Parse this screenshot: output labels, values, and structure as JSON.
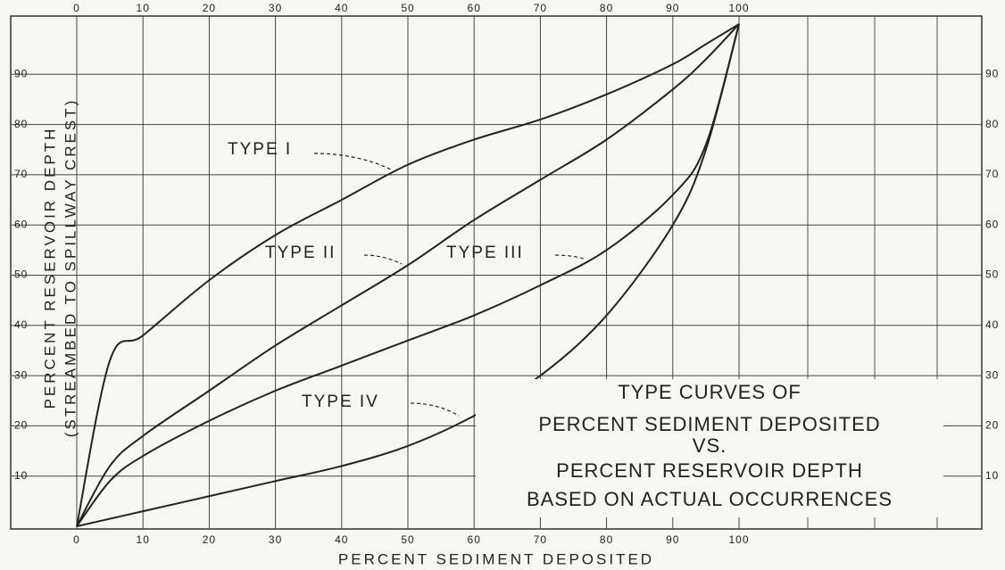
{
  "chart_data": {
    "type": "line",
    "title": [
      "TYPE CURVES OF",
      "PERCENT SEDIMENT DEPOSITED",
      "VS.",
      "PERCENT RESERVOIR DEPTH",
      "BASED ON ACTUAL OCCURRENCES"
    ],
    "xlabel": "PERCENT SEDIMENT DEPOSITED",
    "ylabel": [
      "PERCENT RESERVOIR DEPTH",
      "(STREAMBED TO SPILLWAY CREST)"
    ],
    "x": [
      0,
      5,
      10,
      20,
      30,
      40,
      50,
      60,
      70,
      80,
      90,
      95,
      100
    ],
    "series": [
      {
        "name": "TYPE I",
        "color": "#222222",
        "values": [
          0,
          33,
          38,
          49,
          58,
          65,
          72,
          77,
          81,
          86,
          92,
          96,
          100
        ]
      },
      {
        "name": "TYPE II",
        "color": "#222222",
        "values": [
          0,
          12,
          18,
          27,
          36,
          44,
          52,
          61,
          69,
          77,
          87,
          93,
          100
        ]
      },
      {
        "name": "TYPE III",
        "color": "#222222",
        "values": [
          0,
          9,
          14,
          21,
          27,
          32,
          37,
          42,
          48,
          55,
          66,
          76,
          100
        ]
      },
      {
        "name": "TYPE IV",
        "color": "#222222",
        "values": [
          0,
          1.5,
          3,
          6,
          9,
          12,
          16,
          22,
          30,
          42,
          60,
          75,
          100
        ]
      }
    ],
    "xlim": [
      0,
      100
    ],
    "ylim": [
      0,
      100
    ],
    "xticks": [
      0,
      10,
      20,
      30,
      40,
      50,
      60,
      70,
      80,
      90,
      100
    ],
    "yticks": [
      10,
      20,
      30,
      40,
      50,
      60,
      70,
      80,
      90
    ],
    "grid": true
  }
}
